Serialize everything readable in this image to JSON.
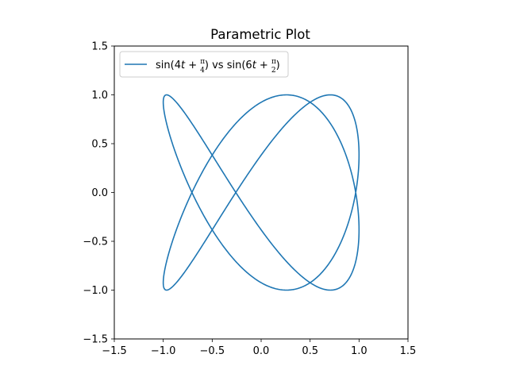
{
  "chart_data": {
    "type": "line",
    "title": "Parametric Plot",
    "xlabel": "",
    "ylabel": "",
    "xlim": [
      -1.5,
      1.5
    ],
    "ylim": [
      -1.5,
      1.5
    ],
    "xticks": [
      -1.5,
      -1.0,
      -0.5,
      0.0,
      0.5,
      1.0,
      1.5
    ],
    "yticks": [
      -1.5,
      -1.0,
      -0.5,
      0.0,
      0.5,
      1.0,
      1.5
    ],
    "xtick_labels": [
      "−1.5",
      "−1.0",
      "−0.5",
      "0.0",
      "0.5",
      "1.0",
      "1.5"
    ],
    "ytick_labels": [
      "−1.5",
      "−1.0",
      "−0.5",
      "0.0",
      "0.5",
      "1.0",
      "1.5"
    ],
    "grid": false,
    "legend_position": "top-left",
    "series": [
      {
        "name": "sin(4t + π/4) vs sin(6t + π/2)",
        "color": "#1f77b4",
        "x_expression": "sin(4t + π/4)",
        "y_expression": "sin(6t + π/2)",
        "t_range": [
          0,
          6.283185307179586
        ]
      }
    ]
  }
}
